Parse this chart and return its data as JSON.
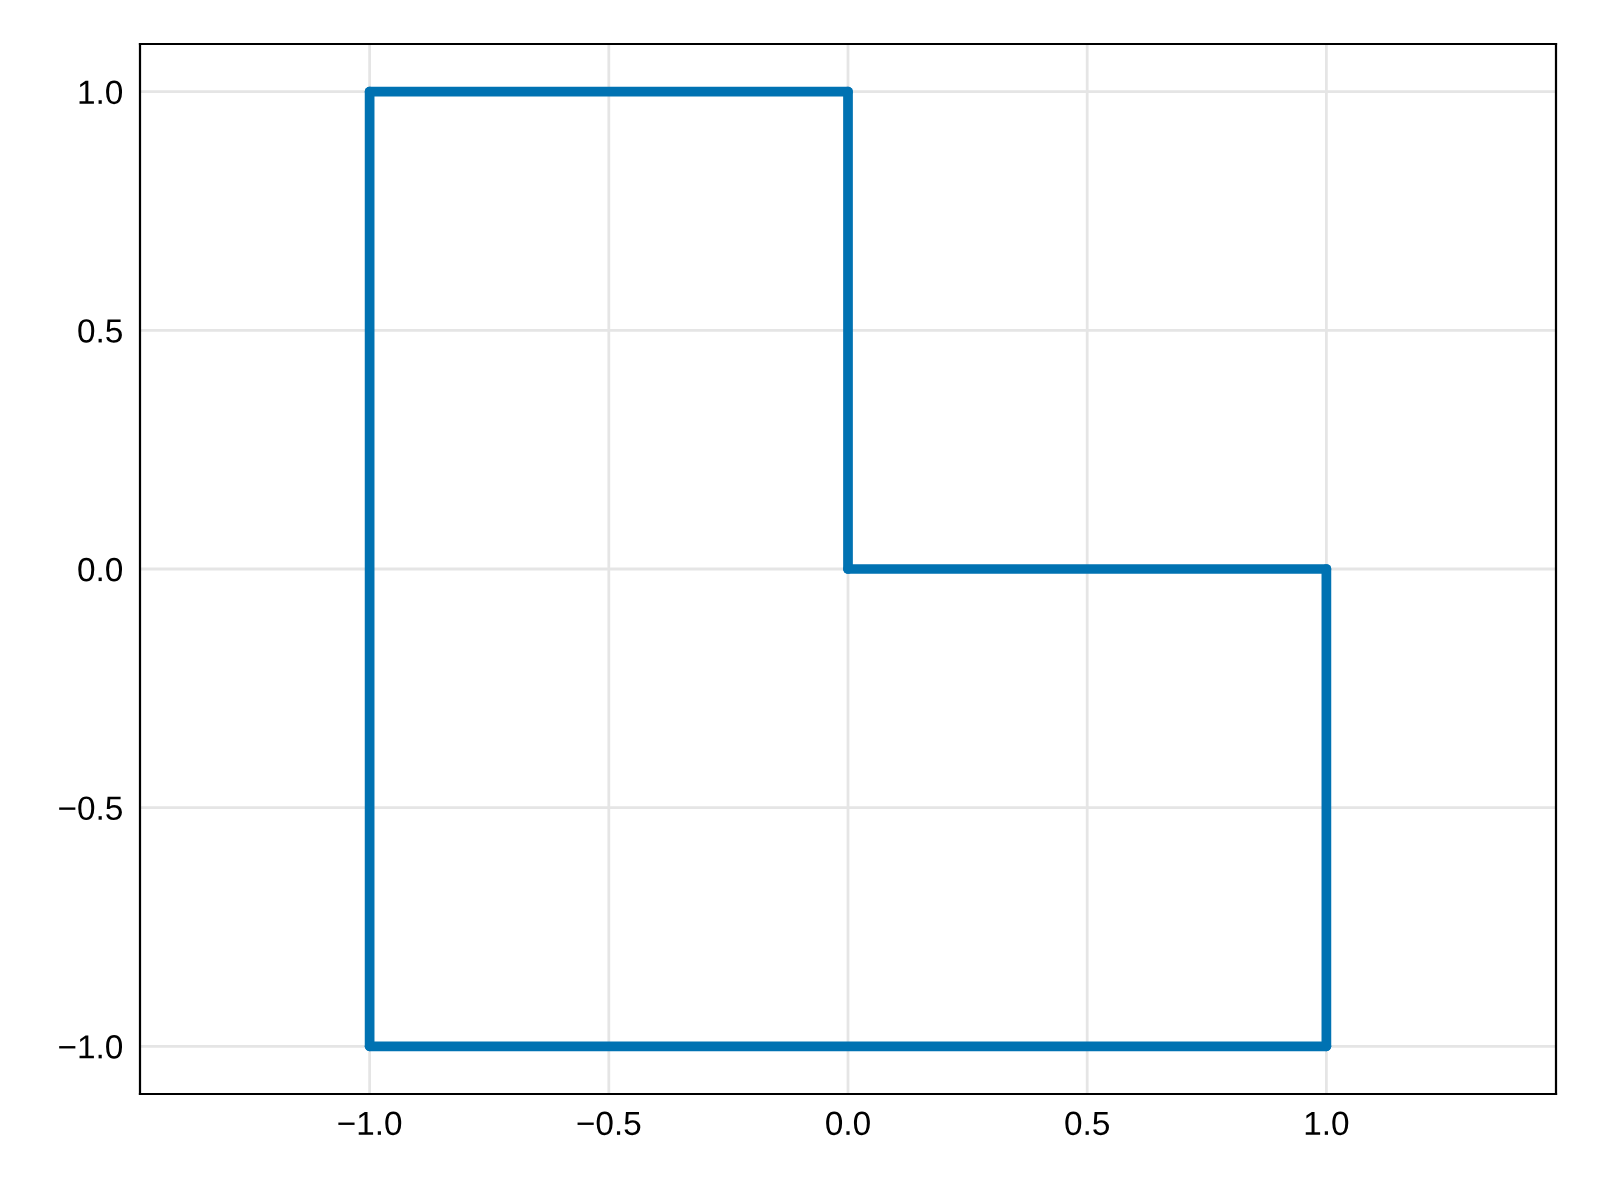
{
  "chart_data": {
    "type": "line",
    "series": [
      {
        "color": "#0072b2",
        "x": [
          -1,
          -1
        ],
        "values": [
          -1,
          1
        ]
      },
      {
        "color": "#0072b2",
        "x": [
          -1,
          0
        ],
        "values": [
          1,
          1
        ]
      },
      {
        "color": "#0072b2",
        "x": [
          0,
          0
        ],
        "values": [
          1,
          0
        ]
      },
      {
        "color": "#0072b2",
        "x": [
          0,
          1
        ],
        "values": [
          0,
          0
        ]
      },
      {
        "color": "#0072b2",
        "x": [
          1,
          1
        ],
        "values": [
          0,
          -1
        ]
      },
      {
        "color": "#0072b2",
        "x": [
          1,
          -1
        ],
        "values": [
          -1,
          -1
        ]
      }
    ],
    "xlim": [
      -1.48,
      1.48
    ],
    "ylim": [
      -1.1,
      1.1
    ],
    "xticks": [
      {
        "value": -1,
        "label": "−1.0"
      },
      {
        "value": -0.5,
        "label": "−0.5"
      },
      {
        "value": 0,
        "label": "0.0"
      },
      {
        "value": 0.5,
        "label": "0.5"
      },
      {
        "value": 1,
        "label": "1.0"
      }
    ],
    "yticks": [
      {
        "value": -1,
        "label": "−1.0"
      },
      {
        "value": -0.5,
        "label": "−0.5"
      },
      {
        "value": 0,
        "label": "0.0"
      },
      {
        "value": 0.5,
        "label": "0.5"
      },
      {
        "value": 1,
        "label": "1.0"
      }
    ],
    "grid": true,
    "marker": "none",
    "line_style": "solid"
  }
}
